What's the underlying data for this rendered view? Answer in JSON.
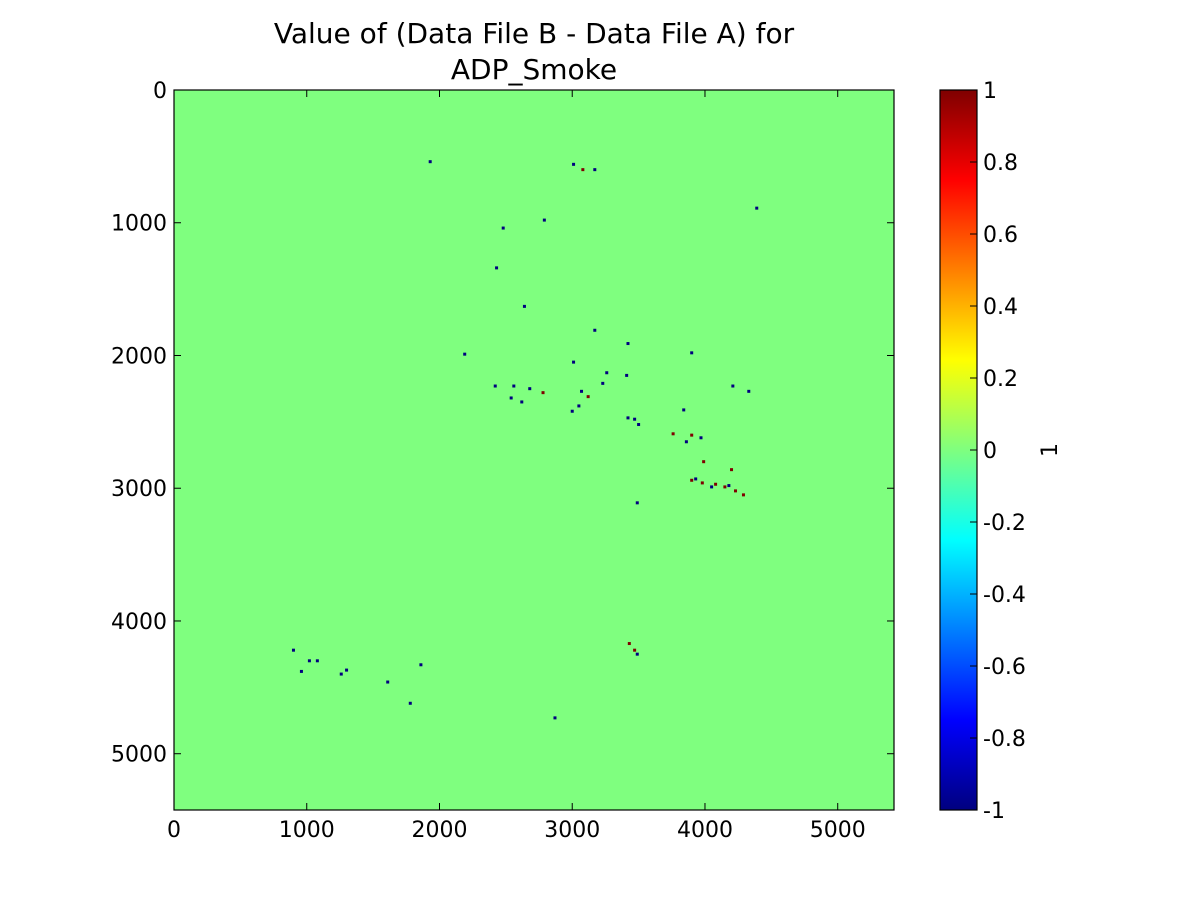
{
  "chart_data": {
    "type": "heatmap",
    "title": [
      "Value of (Data File B - Data File A) for",
      "ADP_Smoke"
    ],
    "xlabel": "",
    "ylabel": "",
    "x_range": [
      0,
      5424
    ],
    "y_range": [
      0,
      5424
    ],
    "y_inverted": true,
    "x_ticks": [
      "0",
      "1000",
      "2000",
      "3000",
      "4000",
      "5000"
    ],
    "y_ticks": [
      "0",
      "1000",
      "2000",
      "3000",
      "4000",
      "5000"
    ],
    "grid": false,
    "background_value": 0,
    "colorbar": {
      "label": "1",
      "colormap": "jet",
      "range": [
        -1,
        1
      ],
      "ticks": [
        "1",
        "0.8",
        "0.6",
        "0.4",
        "0.2",
        "0",
        "-0.2",
        "-0.4",
        "-0.6",
        "-0.8",
        "-1"
      ],
      "stops": [
        "#00007f",
        "#0000ff",
        "#007fff",
        "#00ffff",
        "#7fff7f",
        "#ffff00",
        "#ff7f00",
        "#ff0000",
        "#7f0000"
      ]
    },
    "difference_points": [
      {
        "x": 1930,
        "y": 540,
        "v": -1
      },
      {
        "x": 3010,
        "y": 560,
        "v": -1
      },
      {
        "x": 3080,
        "y": 600,
        "v": 1
      },
      {
        "x": 3170,
        "y": 600,
        "v": -1
      },
      {
        "x": 2790,
        "y": 980,
        "v": -1
      },
      {
        "x": 2480,
        "y": 1040,
        "v": -1
      },
      {
        "x": 4390,
        "y": 890,
        "v": -1
      },
      {
        "x": 2430,
        "y": 1340,
        "v": -1
      },
      {
        "x": 2640,
        "y": 1630,
        "v": -1
      },
      {
        "x": 3170,
        "y": 1810,
        "v": -1
      },
      {
        "x": 3420,
        "y": 1910,
        "v": -1
      },
      {
        "x": 3900,
        "y": 1980,
        "v": -1
      },
      {
        "x": 2190,
        "y": 1990,
        "v": -1
      },
      {
        "x": 3010,
        "y": 2050,
        "v": -1
      },
      {
        "x": 3260,
        "y": 2130,
        "v": -1
      },
      {
        "x": 3410,
        "y": 2150,
        "v": -1
      },
      {
        "x": 3230,
        "y": 2210,
        "v": -1
      },
      {
        "x": 2420,
        "y": 2230,
        "v": -1
      },
      {
        "x": 2560,
        "y": 2230,
        "v": -1
      },
      {
        "x": 2680,
        "y": 2250,
        "v": -1
      },
      {
        "x": 2780,
        "y": 2280,
        "v": 1
      },
      {
        "x": 2540,
        "y": 2320,
        "v": -1
      },
      {
        "x": 2620,
        "y": 2350,
        "v": -1
      },
      {
        "x": 3070,
        "y": 2270,
        "v": -1
      },
      {
        "x": 3050,
        "y": 2380,
        "v": -1
      },
      {
        "x": 3120,
        "y": 2310,
        "v": 1
      },
      {
        "x": 3000,
        "y": 2420,
        "v": -1
      },
      {
        "x": 3470,
        "y": 2480,
        "v": -1
      },
      {
        "x": 3500,
        "y": 2520,
        "v": -1
      },
      {
        "x": 3420,
        "y": 2470,
        "v": -1
      },
      {
        "x": 3840,
        "y": 2410,
        "v": -1
      },
      {
        "x": 4210,
        "y": 2230,
        "v": -1
      },
      {
        "x": 4330,
        "y": 2270,
        "v": -1
      },
      {
        "x": 3760,
        "y": 2590,
        "v": 1
      },
      {
        "x": 3900,
        "y": 2600,
        "v": 1
      },
      {
        "x": 3860,
        "y": 2650,
        "v": -1
      },
      {
        "x": 3970,
        "y": 2620,
        "v": -1
      },
      {
        "x": 3990,
        "y": 2800,
        "v": 1
      },
      {
        "x": 4200,
        "y": 2860,
        "v": 1
      },
      {
        "x": 3900,
        "y": 2940,
        "v": 1
      },
      {
        "x": 3980,
        "y": 2960,
        "v": 1
      },
      {
        "x": 4080,
        "y": 2970,
        "v": 1
      },
      {
        "x": 4150,
        "y": 2990,
        "v": 1
      },
      {
        "x": 4230,
        "y": 3020,
        "v": 1
      },
      {
        "x": 4290,
        "y": 3050,
        "v": 1
      },
      {
        "x": 3930,
        "y": 2930,
        "v": -1
      },
      {
        "x": 4050,
        "y": 2990,
        "v": -1
      },
      {
        "x": 4180,
        "y": 2980,
        "v": -1
      },
      {
        "x": 3490,
        "y": 3110,
        "v": -1
      },
      {
        "x": 3430,
        "y": 4170,
        "v": 1
      },
      {
        "x": 3470,
        "y": 4220,
        "v": 1
      },
      {
        "x": 3490,
        "y": 4250,
        "v": -1
      },
      {
        "x": 900,
        "y": 4220,
        "v": -1
      },
      {
        "x": 1020,
        "y": 4300,
        "v": -1
      },
      {
        "x": 1080,
        "y": 4300,
        "v": -1
      },
      {
        "x": 960,
        "y": 4380,
        "v": -1
      },
      {
        "x": 1300,
        "y": 4370,
        "v": -1
      },
      {
        "x": 1260,
        "y": 4400,
        "v": -1
      },
      {
        "x": 1860,
        "y": 4330,
        "v": -1
      },
      {
        "x": 1610,
        "y": 4460,
        "v": -1
      },
      {
        "x": 1780,
        "y": 4620,
        "v": -1
      },
      {
        "x": 2870,
        "y": 4730,
        "v": -1
      }
    ]
  }
}
